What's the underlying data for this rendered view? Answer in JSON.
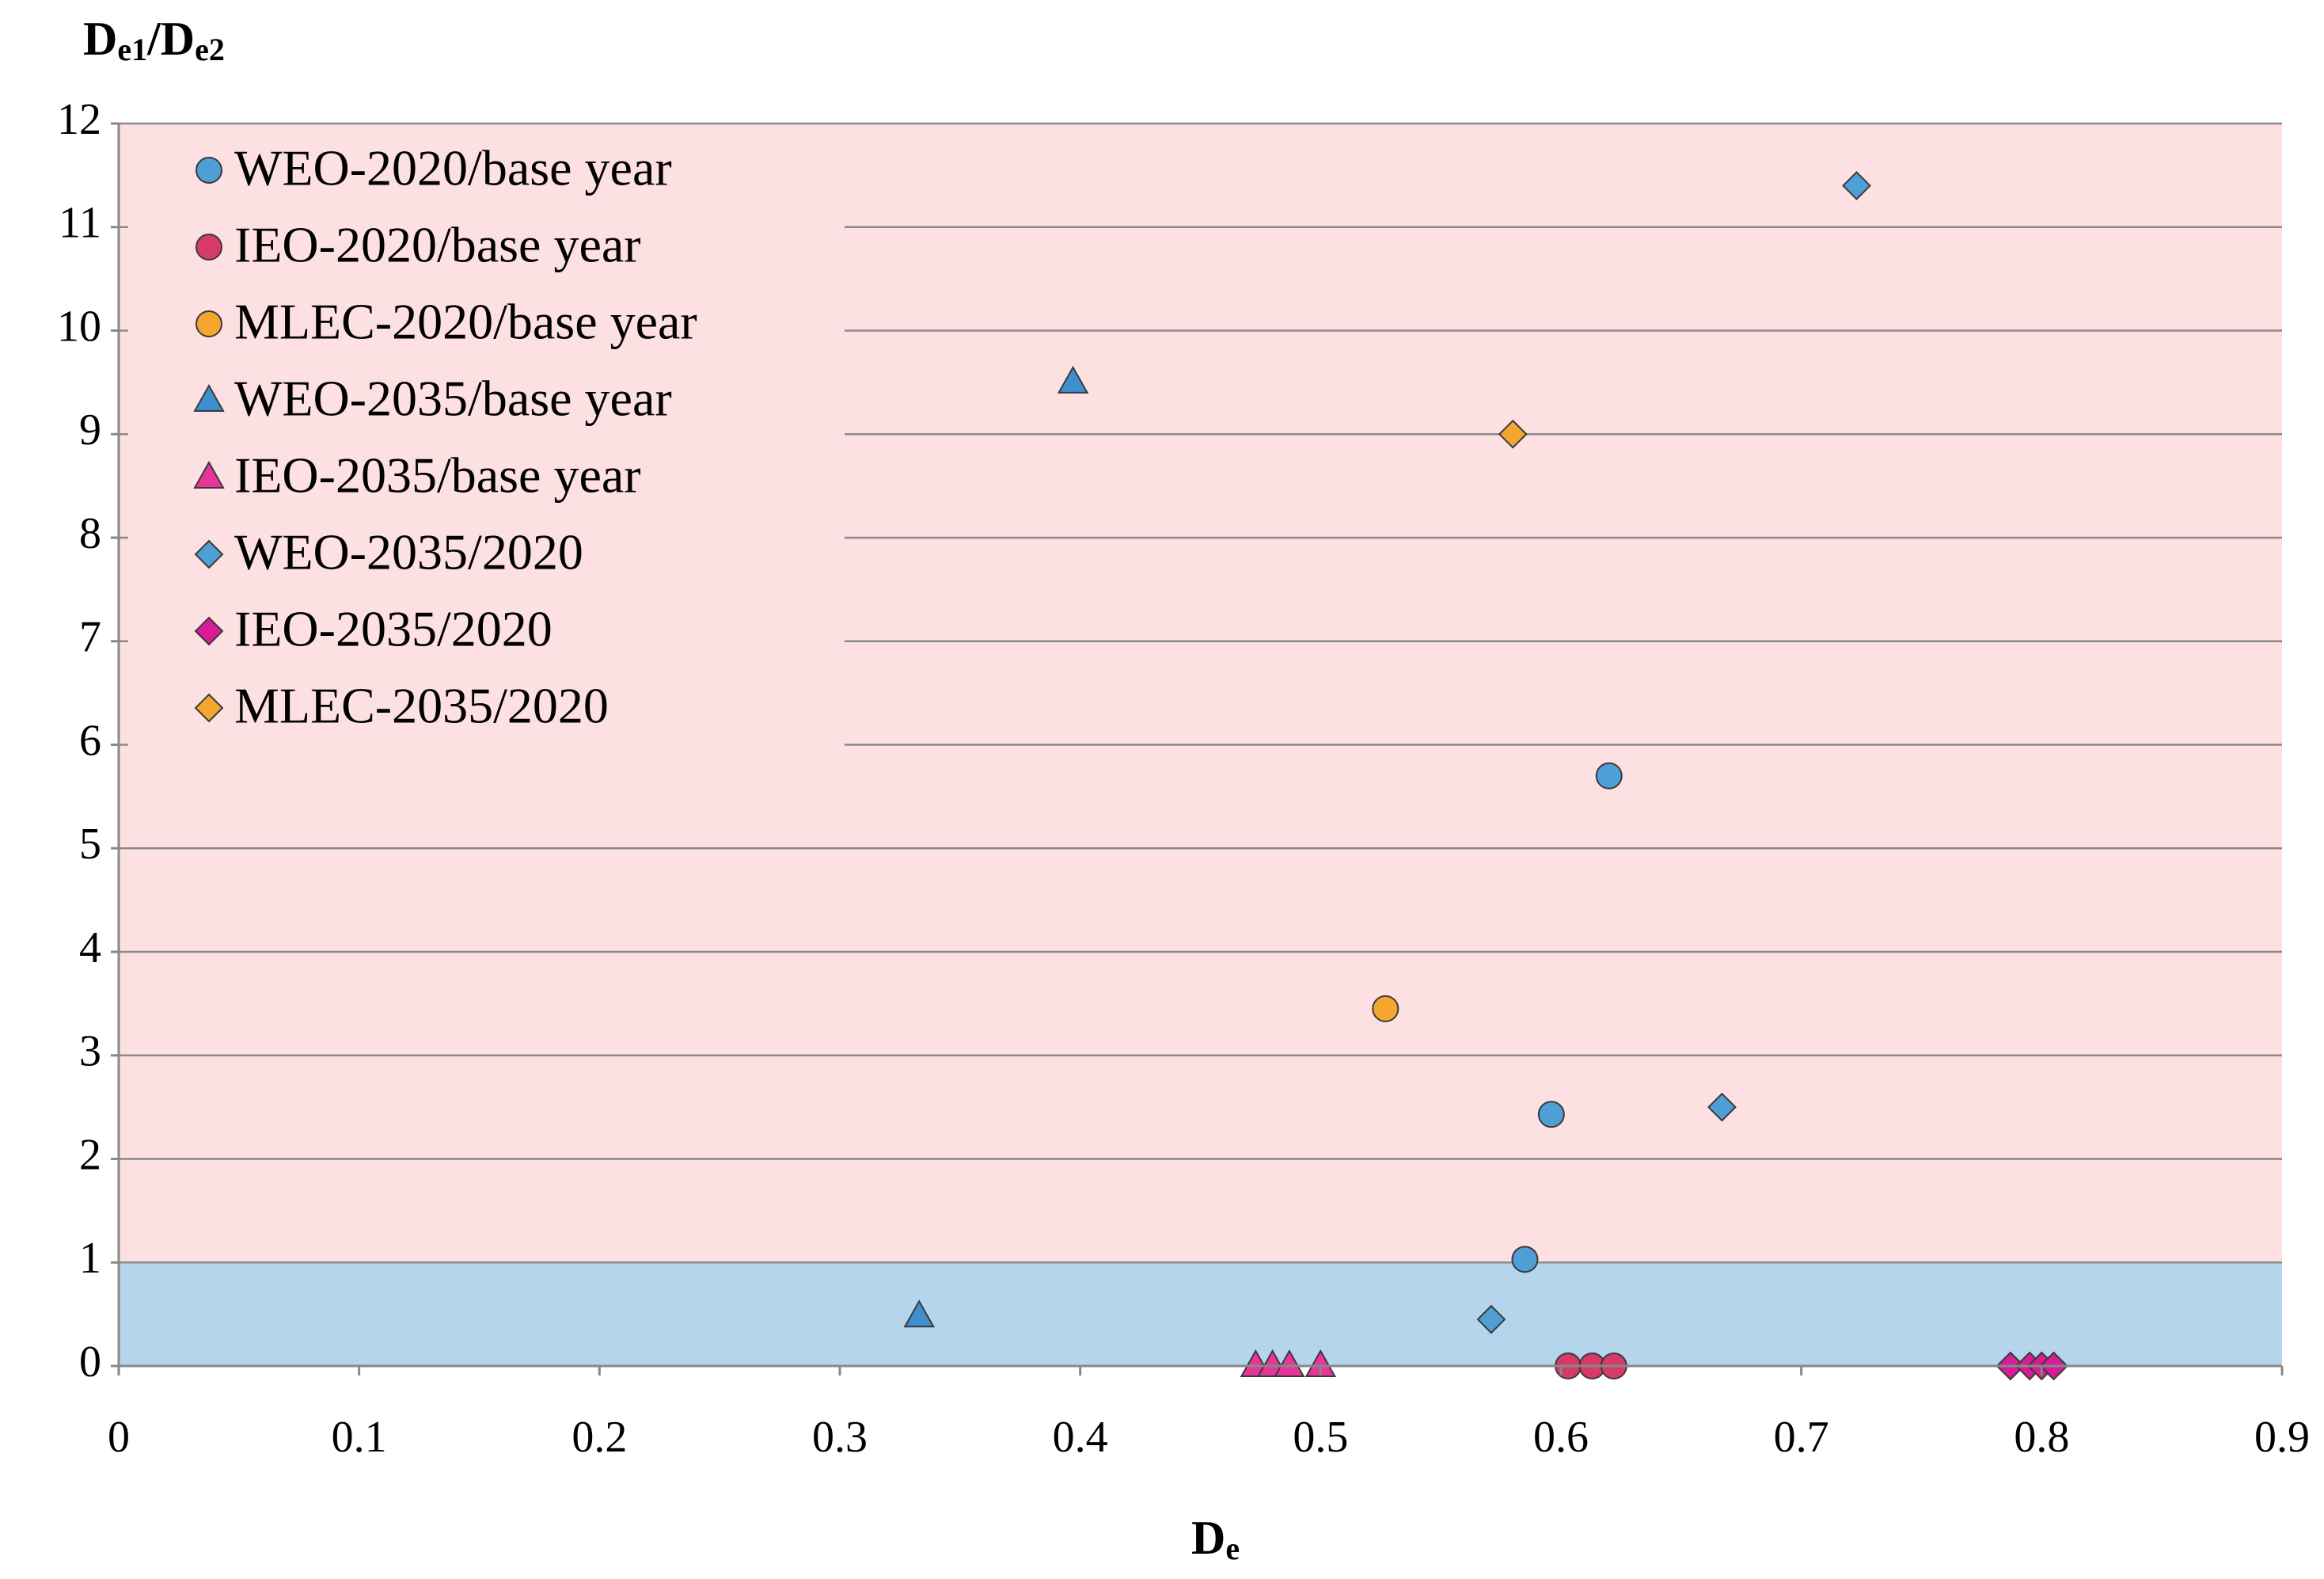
{
  "chart_data": {
    "type": "scatter",
    "xlabel_parts": [
      "D",
      "e"
    ],
    "ylabel_parts": [
      "D",
      "e1",
      "/D",
      "e2"
    ],
    "xlim": [
      0,
      0.9
    ],
    "xticks": [
      0,
      0.1,
      0.2,
      0.3,
      0.4,
      0.5,
      0.6,
      0.7,
      0.8,
      0.9
    ],
    "ylim": [
      0,
      12
    ],
    "yticks": [
      0,
      1,
      2,
      3,
      4,
      5,
      6,
      7,
      8,
      9,
      10,
      11,
      12
    ],
    "grid": true,
    "legend": "upper left",
    "regions": [
      {
        "from": 0,
        "to": 1,
        "color": "#b4d5ec"
      },
      {
        "from": 1,
        "to": 12,
        "color": "#fde0e1"
      }
    ],
    "series": [
      {
        "name": "WEO-2020/base year",
        "marker": "circle",
        "color": "#4f9fd6",
        "x": [
          0.62,
          0.596,
          0.585
        ],
        "values": [
          5.7,
          2.43,
          1.03
        ]
      },
      {
        "name": "IEO-2020/base year",
        "marker": "circle",
        "color": "#d63a6a",
        "x": [
          0.603,
          0.613,
          0.622
        ],
        "values": [
          0,
          0,
          0
        ]
      },
      {
        "name": "MLEC-2020/base year",
        "marker": "circle",
        "color": "#f5a631",
        "x": [
          0.527
        ],
        "values": [
          3.45
        ]
      },
      {
        "name": "WEO-2035/base year",
        "marker": "triangle",
        "color": "#3d8fcf",
        "x": [
          0.397,
          0.333
        ],
        "values": [
          9.5,
          0.48
        ]
      },
      {
        "name": "IEO-2035/base year",
        "marker": "triangle",
        "color": "#e8359a",
        "x": [
          0.473,
          0.48,
          0.487,
          0.5
        ],
        "values": [
          0,
          0,
          0,
          0
        ]
      },
      {
        "name": "WEO-2035/2020",
        "marker": "diamond",
        "color": "#4f9fd6",
        "x": [
          0.723,
          0.667,
          0.571
        ],
        "values": [
          11.4,
          2.5,
          0.45
        ]
      },
      {
        "name": "IEO-2035/2020",
        "marker": "diamond",
        "color": "#d81b96",
        "x": [
          0.787,
          0.795,
          0.8,
          0.805
        ],
        "values": [
          0,
          0,
          0,
          0
        ]
      },
      {
        "name": "MLEC-2035/2020",
        "marker": "diamond",
        "color": "#f5a631",
        "x": [
          0.58
        ],
        "values": [
          9.0
        ]
      }
    ]
  }
}
